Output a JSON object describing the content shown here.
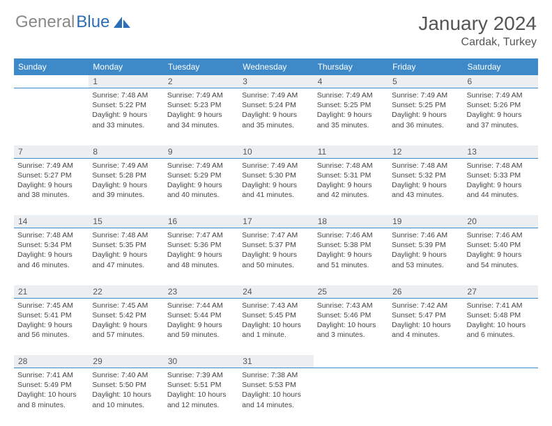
{
  "brand": {
    "part1": "General",
    "part2": "Blue",
    "icon_color": "#2a6db8",
    "gray_color": "#888888"
  },
  "title": "January 2024",
  "location": "Cardak, Turkey",
  "colors": {
    "header_bg": "#3e8ac8",
    "header_text": "#ffffff",
    "daynum_bg": "#eceff1",
    "daynum_text": "#555555",
    "cell_text": "#444444",
    "border": "#3e8ac8"
  },
  "dayNames": [
    "Sunday",
    "Monday",
    "Tuesday",
    "Wednesday",
    "Thursday",
    "Friday",
    "Saturday"
  ],
  "weeks": [
    [
      null,
      {
        "n": "1",
        "sr": "7:48 AM",
        "ss": "5:22 PM",
        "dl": "9 hours and 33 minutes."
      },
      {
        "n": "2",
        "sr": "7:49 AM",
        "ss": "5:23 PM",
        "dl": "9 hours and 34 minutes."
      },
      {
        "n": "3",
        "sr": "7:49 AM",
        "ss": "5:24 PM",
        "dl": "9 hours and 35 minutes."
      },
      {
        "n": "4",
        "sr": "7:49 AM",
        "ss": "5:25 PM",
        "dl": "9 hours and 35 minutes."
      },
      {
        "n": "5",
        "sr": "7:49 AM",
        "ss": "5:25 PM",
        "dl": "9 hours and 36 minutes."
      },
      {
        "n": "6",
        "sr": "7:49 AM",
        "ss": "5:26 PM",
        "dl": "9 hours and 37 minutes."
      }
    ],
    [
      {
        "n": "7",
        "sr": "7:49 AM",
        "ss": "5:27 PM",
        "dl": "9 hours and 38 minutes."
      },
      {
        "n": "8",
        "sr": "7:49 AM",
        "ss": "5:28 PM",
        "dl": "9 hours and 39 minutes."
      },
      {
        "n": "9",
        "sr": "7:49 AM",
        "ss": "5:29 PM",
        "dl": "9 hours and 40 minutes."
      },
      {
        "n": "10",
        "sr": "7:49 AM",
        "ss": "5:30 PM",
        "dl": "9 hours and 41 minutes."
      },
      {
        "n": "11",
        "sr": "7:48 AM",
        "ss": "5:31 PM",
        "dl": "9 hours and 42 minutes."
      },
      {
        "n": "12",
        "sr": "7:48 AM",
        "ss": "5:32 PM",
        "dl": "9 hours and 43 minutes."
      },
      {
        "n": "13",
        "sr": "7:48 AM",
        "ss": "5:33 PM",
        "dl": "9 hours and 44 minutes."
      }
    ],
    [
      {
        "n": "14",
        "sr": "7:48 AM",
        "ss": "5:34 PM",
        "dl": "9 hours and 46 minutes."
      },
      {
        "n": "15",
        "sr": "7:48 AM",
        "ss": "5:35 PM",
        "dl": "9 hours and 47 minutes."
      },
      {
        "n": "16",
        "sr": "7:47 AM",
        "ss": "5:36 PM",
        "dl": "9 hours and 48 minutes."
      },
      {
        "n": "17",
        "sr": "7:47 AM",
        "ss": "5:37 PM",
        "dl": "9 hours and 50 minutes."
      },
      {
        "n": "18",
        "sr": "7:46 AM",
        "ss": "5:38 PM",
        "dl": "9 hours and 51 minutes."
      },
      {
        "n": "19",
        "sr": "7:46 AM",
        "ss": "5:39 PM",
        "dl": "9 hours and 53 minutes."
      },
      {
        "n": "20",
        "sr": "7:46 AM",
        "ss": "5:40 PM",
        "dl": "9 hours and 54 minutes."
      }
    ],
    [
      {
        "n": "21",
        "sr": "7:45 AM",
        "ss": "5:41 PM",
        "dl": "9 hours and 56 minutes."
      },
      {
        "n": "22",
        "sr": "7:45 AM",
        "ss": "5:42 PM",
        "dl": "9 hours and 57 minutes."
      },
      {
        "n": "23",
        "sr": "7:44 AM",
        "ss": "5:44 PM",
        "dl": "9 hours and 59 minutes."
      },
      {
        "n": "24",
        "sr": "7:43 AM",
        "ss": "5:45 PM",
        "dl": "10 hours and 1 minute."
      },
      {
        "n": "25",
        "sr": "7:43 AM",
        "ss": "5:46 PM",
        "dl": "10 hours and 3 minutes."
      },
      {
        "n": "26",
        "sr": "7:42 AM",
        "ss": "5:47 PM",
        "dl": "10 hours and 4 minutes."
      },
      {
        "n": "27",
        "sr": "7:41 AM",
        "ss": "5:48 PM",
        "dl": "10 hours and 6 minutes."
      }
    ],
    [
      {
        "n": "28",
        "sr": "7:41 AM",
        "ss": "5:49 PM",
        "dl": "10 hours and 8 minutes."
      },
      {
        "n": "29",
        "sr": "7:40 AM",
        "ss": "5:50 PM",
        "dl": "10 hours and 10 minutes."
      },
      {
        "n": "30",
        "sr": "7:39 AM",
        "ss": "5:51 PM",
        "dl": "10 hours and 12 minutes."
      },
      {
        "n": "31",
        "sr": "7:38 AM",
        "ss": "5:53 PM",
        "dl": "10 hours and 14 minutes."
      },
      null,
      null,
      null
    ]
  ],
  "labels": {
    "sunrise": "Sunrise:",
    "sunset": "Sunset:",
    "daylight": "Daylight:"
  }
}
